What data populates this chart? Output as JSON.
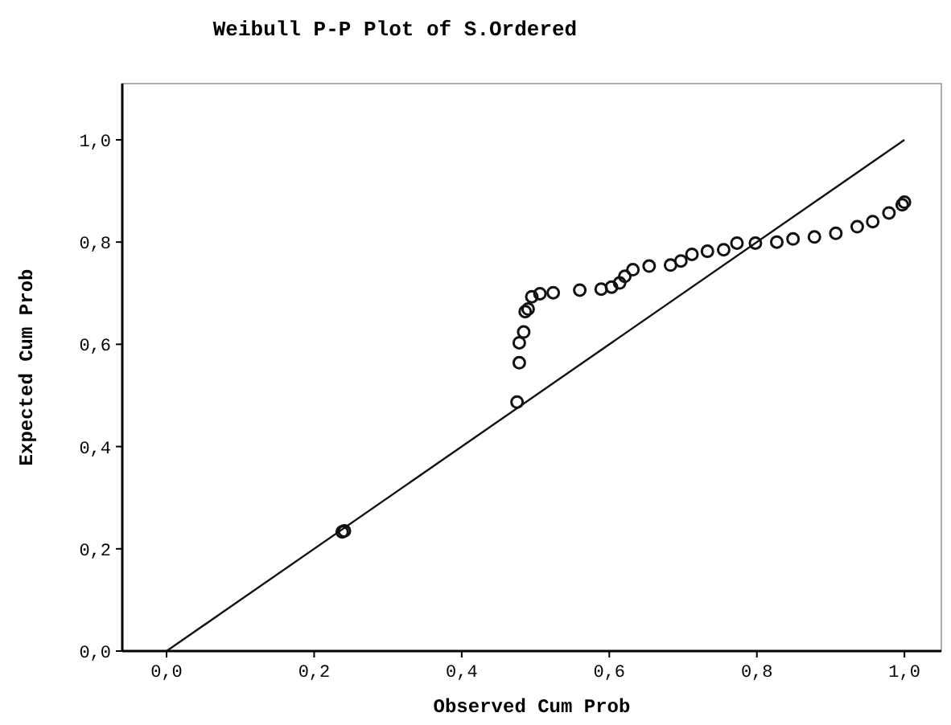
{
  "chart_data": {
    "type": "scatter",
    "title": "Weibull P-P Plot of S.Ordered",
    "xlabel": "Observed Cum Prob",
    "ylabel": "Expected Cum Prob",
    "xlim": [
      -0.06,
      1.05
    ],
    "ylim": [
      0,
      1.11
    ],
    "xticks": [
      {
        "value": 0,
        "label": "0,0"
      },
      {
        "value": 0.2,
        "label": "0,2"
      },
      {
        "value": 0.4,
        "label": "0,4"
      },
      {
        "value": 0.6,
        "label": "0,6"
      },
      {
        "value": 0.8,
        "label": "0,8"
      },
      {
        "value": 1,
        "label": "1,0"
      }
    ],
    "yticks": [
      {
        "value": 0,
        "label": "0,0"
      },
      {
        "value": 0.2,
        "label": "0,2"
      },
      {
        "value": 0.4,
        "label": "0,4"
      },
      {
        "value": 0.6,
        "label": "0,6"
      },
      {
        "value": 0.8,
        "label": "0,8"
      },
      {
        "value": 1,
        "label": "1,0"
      }
    ],
    "grid": false,
    "series": [
      {
        "marker": "circle",
        "color": "#111111",
        "x": [
          0.238,
          0.241,
          0.475,
          0.478,
          0.478,
          0.484,
          0.486,
          0.49,
          0.495,
          0.506,
          0.524,
          0.56,
          0.589,
          0.603,
          0.614,
          0.621,
          0.632,
          0.654,
          0.683,
          0.697,
          0.712,
          0.733,
          0.755,
          0.773,
          0.798,
          0.827,
          0.849,
          0.878,
          0.907,
          0.936,
          0.957,
          0.979,
          0.997,
          1.0
        ],
        "values": [
          0.233,
          0.235,
          0.487,
          0.564,
          0.603,
          0.624,
          0.664,
          0.669,
          0.693,
          0.699,
          0.701,
          0.706,
          0.708,
          0.712,
          0.72,
          0.733,
          0.746,
          0.753,
          0.755,
          0.763,
          0.776,
          0.782,
          0.785,
          0.798,
          0.798,
          0.8,
          0.806,
          0.81,
          0.817,
          0.83,
          0.84,
          0.857,
          0.873,
          0.878
        ]
      },
      {
        "type": "line",
        "color": "#111111",
        "x": [
          0,
          1
        ],
        "values": [
          0,
          1
        ]
      }
    ]
  }
}
